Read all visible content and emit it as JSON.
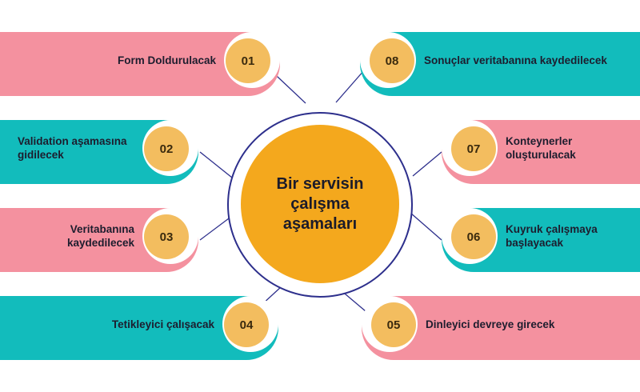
{
  "hub": {
    "title": "Bir servisin çalışma aşamaları"
  },
  "steps": [
    {
      "number": "01",
      "label": "Form Doldurulacak"
    },
    {
      "number": "02",
      "label": "Validation aşamasına gidilecek"
    },
    {
      "number": "03",
      "label": "Veritabanına kaydedilecek"
    },
    {
      "number": "04",
      "label": "Tetikleyici çalışacak"
    },
    {
      "number": "05",
      "label": "Dinleyici devreye girecek"
    },
    {
      "number": "06",
      "label": "Kuyruk çalışmaya başlayacak"
    },
    {
      "number": "07",
      "label": "Konteynerler oluşturulacak"
    },
    {
      "number": "08",
      "label": "Sonuçlar veritabanına kaydedilecek"
    }
  ],
  "colors": {
    "pink": "#f4919f",
    "teal": "#12bcbc",
    "badge": "#f3bd5f",
    "hub": "#f4a81d",
    "ring": "#2d2f8c"
  }
}
